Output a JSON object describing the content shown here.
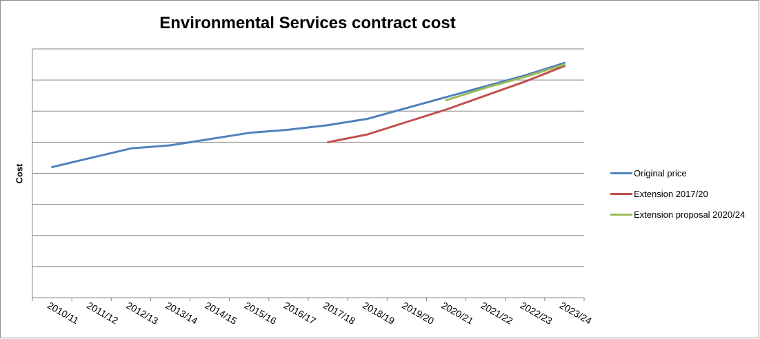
{
  "chart_data": {
    "type": "line",
    "title": "Environmental Services contract cost",
    "xlabel": "",
    "ylabel": "Cost",
    "categories": [
      "2010/11",
      "2011/12",
      "2012/13",
      "2013/14",
      "2014/15",
      "2015/16",
      "2016/17",
      "2017/18",
      "2018/19",
      "2019/20",
      "2020/21",
      "2021/22",
      "2022/23",
      "2023/24"
    ],
    "ylim": [
      0,
      8
    ],
    "y_tick_labels_shown": false,
    "grid": true,
    "legend_position": "right",
    "series": [
      {
        "name": "Original price",
        "color": "#4f81bd",
        "values": [
          4.2,
          4.5,
          4.8,
          4.9,
          5.1,
          5.3,
          5.4,
          5.55,
          5.75,
          6.1,
          6.45,
          6.8,
          7.15,
          7.55
        ]
      },
      {
        "name": "Extension 2017/20",
        "color": "#c0504d",
        "values": [
          null,
          null,
          null,
          null,
          null,
          null,
          null,
          5.0,
          5.25,
          5.65,
          6.05,
          6.5,
          6.95,
          7.45
        ]
      },
      {
        "name": "Extension proposal 2020/24",
        "color": "#9bbb59",
        "values": [
          null,
          null,
          null,
          null,
          null,
          null,
          null,
          null,
          null,
          null,
          6.35,
          6.75,
          7.1,
          7.5
        ]
      }
    ]
  }
}
